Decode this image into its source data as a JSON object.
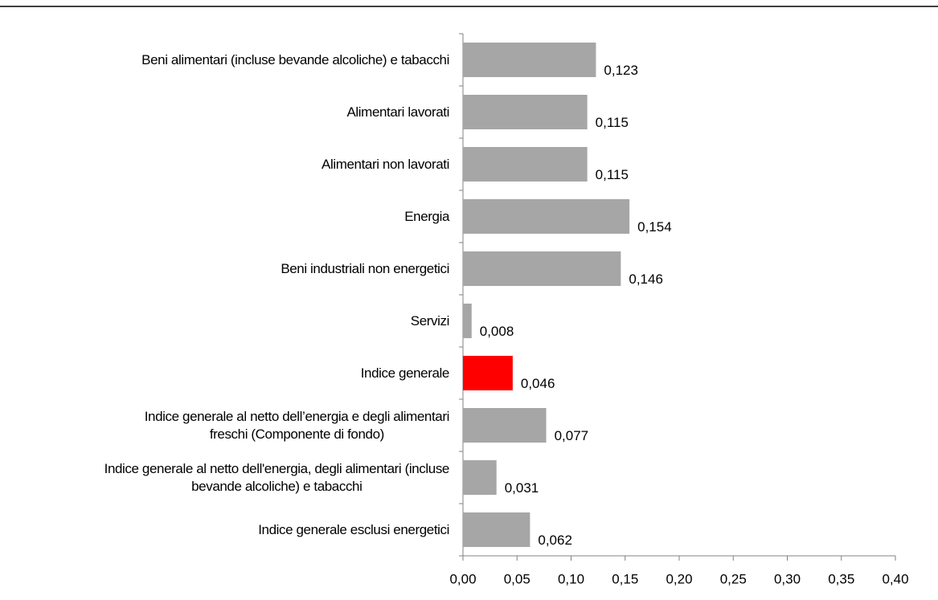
{
  "chart_data": {
    "type": "barh",
    "categories": [
      "Beni alimentari (incluse bevande alcoliche) e tabacchi",
      "Alimentari lavorati",
      "Alimentari non lavorati",
      "Energia",
      "Beni industriali non energetici",
      "Servizi",
      "Indice generale",
      "Indice generale al netto dell’energia e degli alimentari\nfreschi (Componente di fondo)",
      "Indice generale al netto dell'energia, degli alimentari (incluse\nbevande alcoliche) e tabacchi",
      "Indice generale esclusi energetici"
    ],
    "values": [
      0.123,
      0.115,
      0.115,
      0.154,
      0.146,
      0.008,
      0.046,
      0.077,
      0.031,
      0.062
    ],
    "value_labels": [
      "0,123",
      "0,115",
      "0,115",
      "0,154",
      "0,146",
      "0,008",
      "0,046",
      "0,077",
      "0,031",
      "0,062"
    ],
    "colors": [
      "#a6a6a6",
      "#a6a6a6",
      "#a6a6a6",
      "#a6a6a6",
      "#a6a6a6",
      "#a6a6a6",
      "#ff0000",
      "#a6a6a6",
      "#a6a6a6",
      "#a6a6a6"
    ],
    "xlim": [
      0,
      0.4
    ],
    "xticks": [
      {
        "value": 0,
        "label": "0,00"
      },
      {
        "value": 0.05,
        "label": "0,05"
      },
      {
        "value": 0.1,
        "label": "0,10"
      },
      {
        "value": 0.15,
        "label": "0,15"
      },
      {
        "value": 0.2,
        "label": "0,20"
      },
      {
        "value": 0.25,
        "label": "0,25"
      },
      {
        "value": 0.3,
        "label": "0,30"
      },
      {
        "value": 0.35,
        "label": "0,35"
      },
      {
        "value": 0.4,
        "label": "0,40"
      }
    ],
    "grid": false
  }
}
